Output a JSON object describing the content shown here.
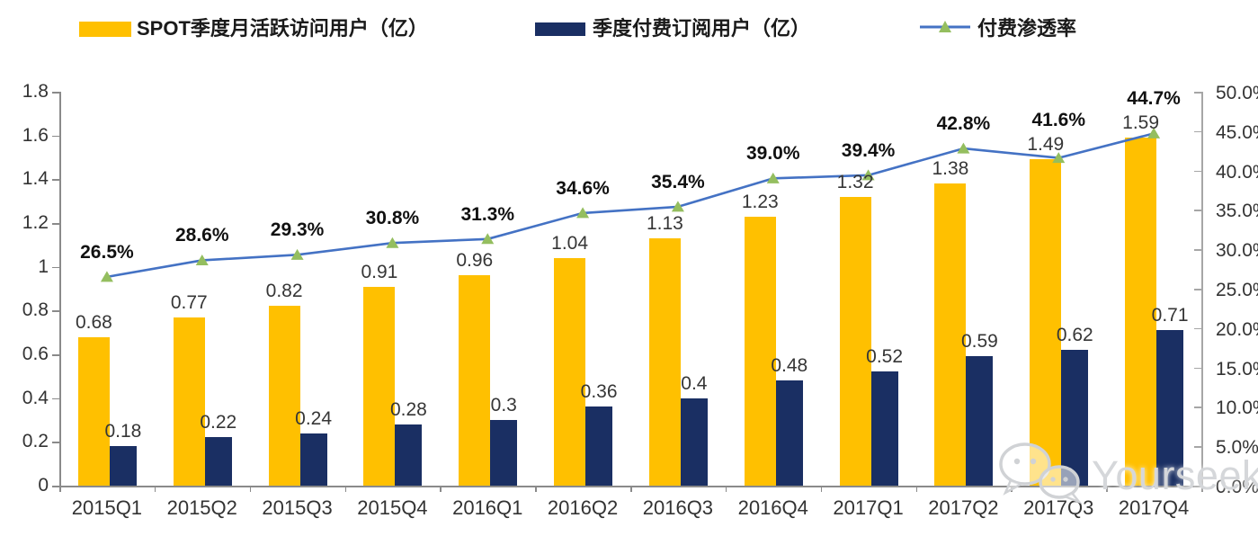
{
  "legend": [
    {
      "label": "SPOT季度月活跃访问用户（亿）",
      "swatch": "bar",
      "color": "#FFC000"
    },
    {
      "label": "季度付费订阅用户（亿）",
      "swatch": "bar",
      "color": "#1A2F63"
    },
    {
      "label": "付费渗透率",
      "swatch": "line",
      "color": "#4472C4",
      "marker_color": "#94BE5F"
    }
  ],
  "watermark": {
    "text": "Yourseeker",
    "icon": "wechat-icon"
  },
  "colors": {
    "mau_bar": "#FFC000",
    "paid_bar": "#1A2F63",
    "line": "#4472C4",
    "marker": "#94BE5F",
    "axis": "#8a8a8a",
    "axis_right": "#a6a6a6"
  },
  "chart_data": {
    "type": "bar",
    "subtype": "grouped-bar-with-line-combo",
    "categories": [
      "2015Q1",
      "2015Q2",
      "2015Q3",
      "2015Q4",
      "2016Q1",
      "2016Q2",
      "2016Q3",
      "2016Q4",
      "2017Q1",
      "2017Q2",
      "2017Q3",
      "2017Q4"
    ],
    "series": [
      {
        "name": "SPOT季度月活跃访问用户（亿）",
        "type": "bar",
        "axis": "left",
        "color": "#FFC000",
        "values": [
          0.68,
          0.77,
          0.82,
          0.91,
          0.96,
          1.04,
          1.13,
          1.23,
          1.32,
          1.38,
          1.49,
          1.59
        ],
        "labels": [
          "0.68",
          "0.77",
          "0.82",
          "0.91",
          "0.96",
          "1.04",
          "1.13",
          "1.23",
          "1.32",
          "1.38",
          "1.49",
          "1.59"
        ]
      },
      {
        "name": "季度付费订阅用户（亿）",
        "type": "bar",
        "axis": "left",
        "color": "#1A2F63",
        "values": [
          0.18,
          0.22,
          0.24,
          0.28,
          0.3,
          0.36,
          0.4,
          0.48,
          0.52,
          0.59,
          0.62,
          0.71
        ],
        "labels": [
          "0.18",
          "0.22",
          "0.24",
          "0.28",
          "0.3",
          "0.36",
          "0.4",
          "0.48",
          "0.52",
          "0.59",
          "0.62",
          "0.71"
        ]
      },
      {
        "name": "付费渗透率",
        "type": "line",
        "axis": "right",
        "color": "#4472C4",
        "marker": "triangle",
        "marker_color": "#94BE5F",
        "values": [
          26.5,
          28.6,
          29.3,
          30.8,
          31.3,
          34.6,
          35.4,
          39.0,
          39.4,
          42.8,
          41.6,
          44.7
        ],
        "labels": [
          "26.5%",
          "28.6%",
          "29.3%",
          "30.8%",
          "31.3%",
          "34.6%",
          "35.4%",
          "39.0%",
          "39.4%",
          "42.8%",
          "41.6%",
          "44.7%"
        ]
      }
    ],
    "left_axis": {
      "min": 0,
      "max": 1.8,
      "ticks": [
        "0",
        "0.2",
        "0.4",
        "0.6",
        "0.8",
        "1",
        "1.2",
        "1.4",
        "1.6",
        "1.8"
      ]
    },
    "right_axis": {
      "min": 0,
      "max": 50,
      "ticks": [
        "0.0%",
        "5.0%",
        "10.0%",
        "15.0%",
        "20.0%",
        "25.0%",
        "30.0%",
        "35.0%",
        "40.0%",
        "45.0%",
        "50.0%"
      ]
    },
    "grid": false,
    "legend_position": "top",
    "title": ""
  }
}
